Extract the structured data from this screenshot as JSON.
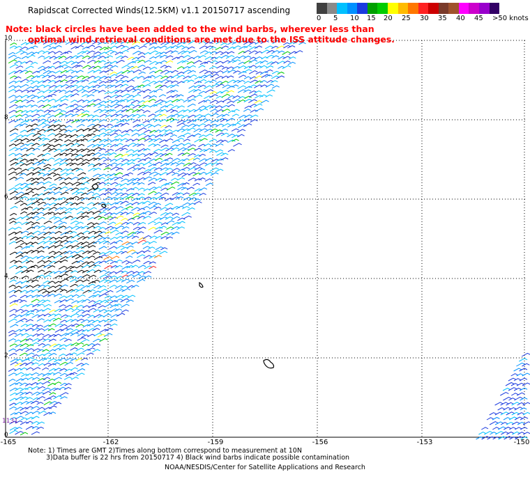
{
  "title": "Rapidscat Corrected Winds(12.5KM) v1.1 20150717 ascending",
  "note_line1": "Note: black circles have been added to the wind barbs, wherever less than",
  "note_line2": "optimal wind retrieval conditions are met due to the ISS attitude changes.",
  "legend": {
    "colors": [
      "#404040",
      "#8a8a8a",
      "#00c0ff",
      "#0090ff",
      "#1a3adf",
      "#00a000",
      "#00cc00",
      "#ffff00",
      "#ffbb00",
      "#ff7700",
      "#ff2222",
      "#cc0000",
      "#7a3a2a",
      "#a0522d",
      "#ff00ff",
      "#cc00cc",
      "#9900cc",
      "#330066"
    ],
    "ticks": [
      "0",
      "5",
      "10",
      "15",
      "20",
      "25",
      "30",
      "35",
      "40",
      "45",
      ">50 knots"
    ]
  },
  "lat_labels": [
    "10",
    "8",
    "6",
    "4",
    "2",
    "0"
  ],
  "lon_labels": [
    "-165",
    "-162",
    "-159",
    "-156",
    "-153",
    "-150"
  ],
  "footnote_line1": "Note: 1) Times are GMT 2)Times along bottom correspond to measurement at 10N",
  "footnote_line2": "3)Data buffer is 22 hrs from 20150717 4) Black wind barbs indicate possible contamination",
  "credit": "NOAA/NESDIS/Center for Satellite Applications and Research",
  "time_label": "1131"
}
